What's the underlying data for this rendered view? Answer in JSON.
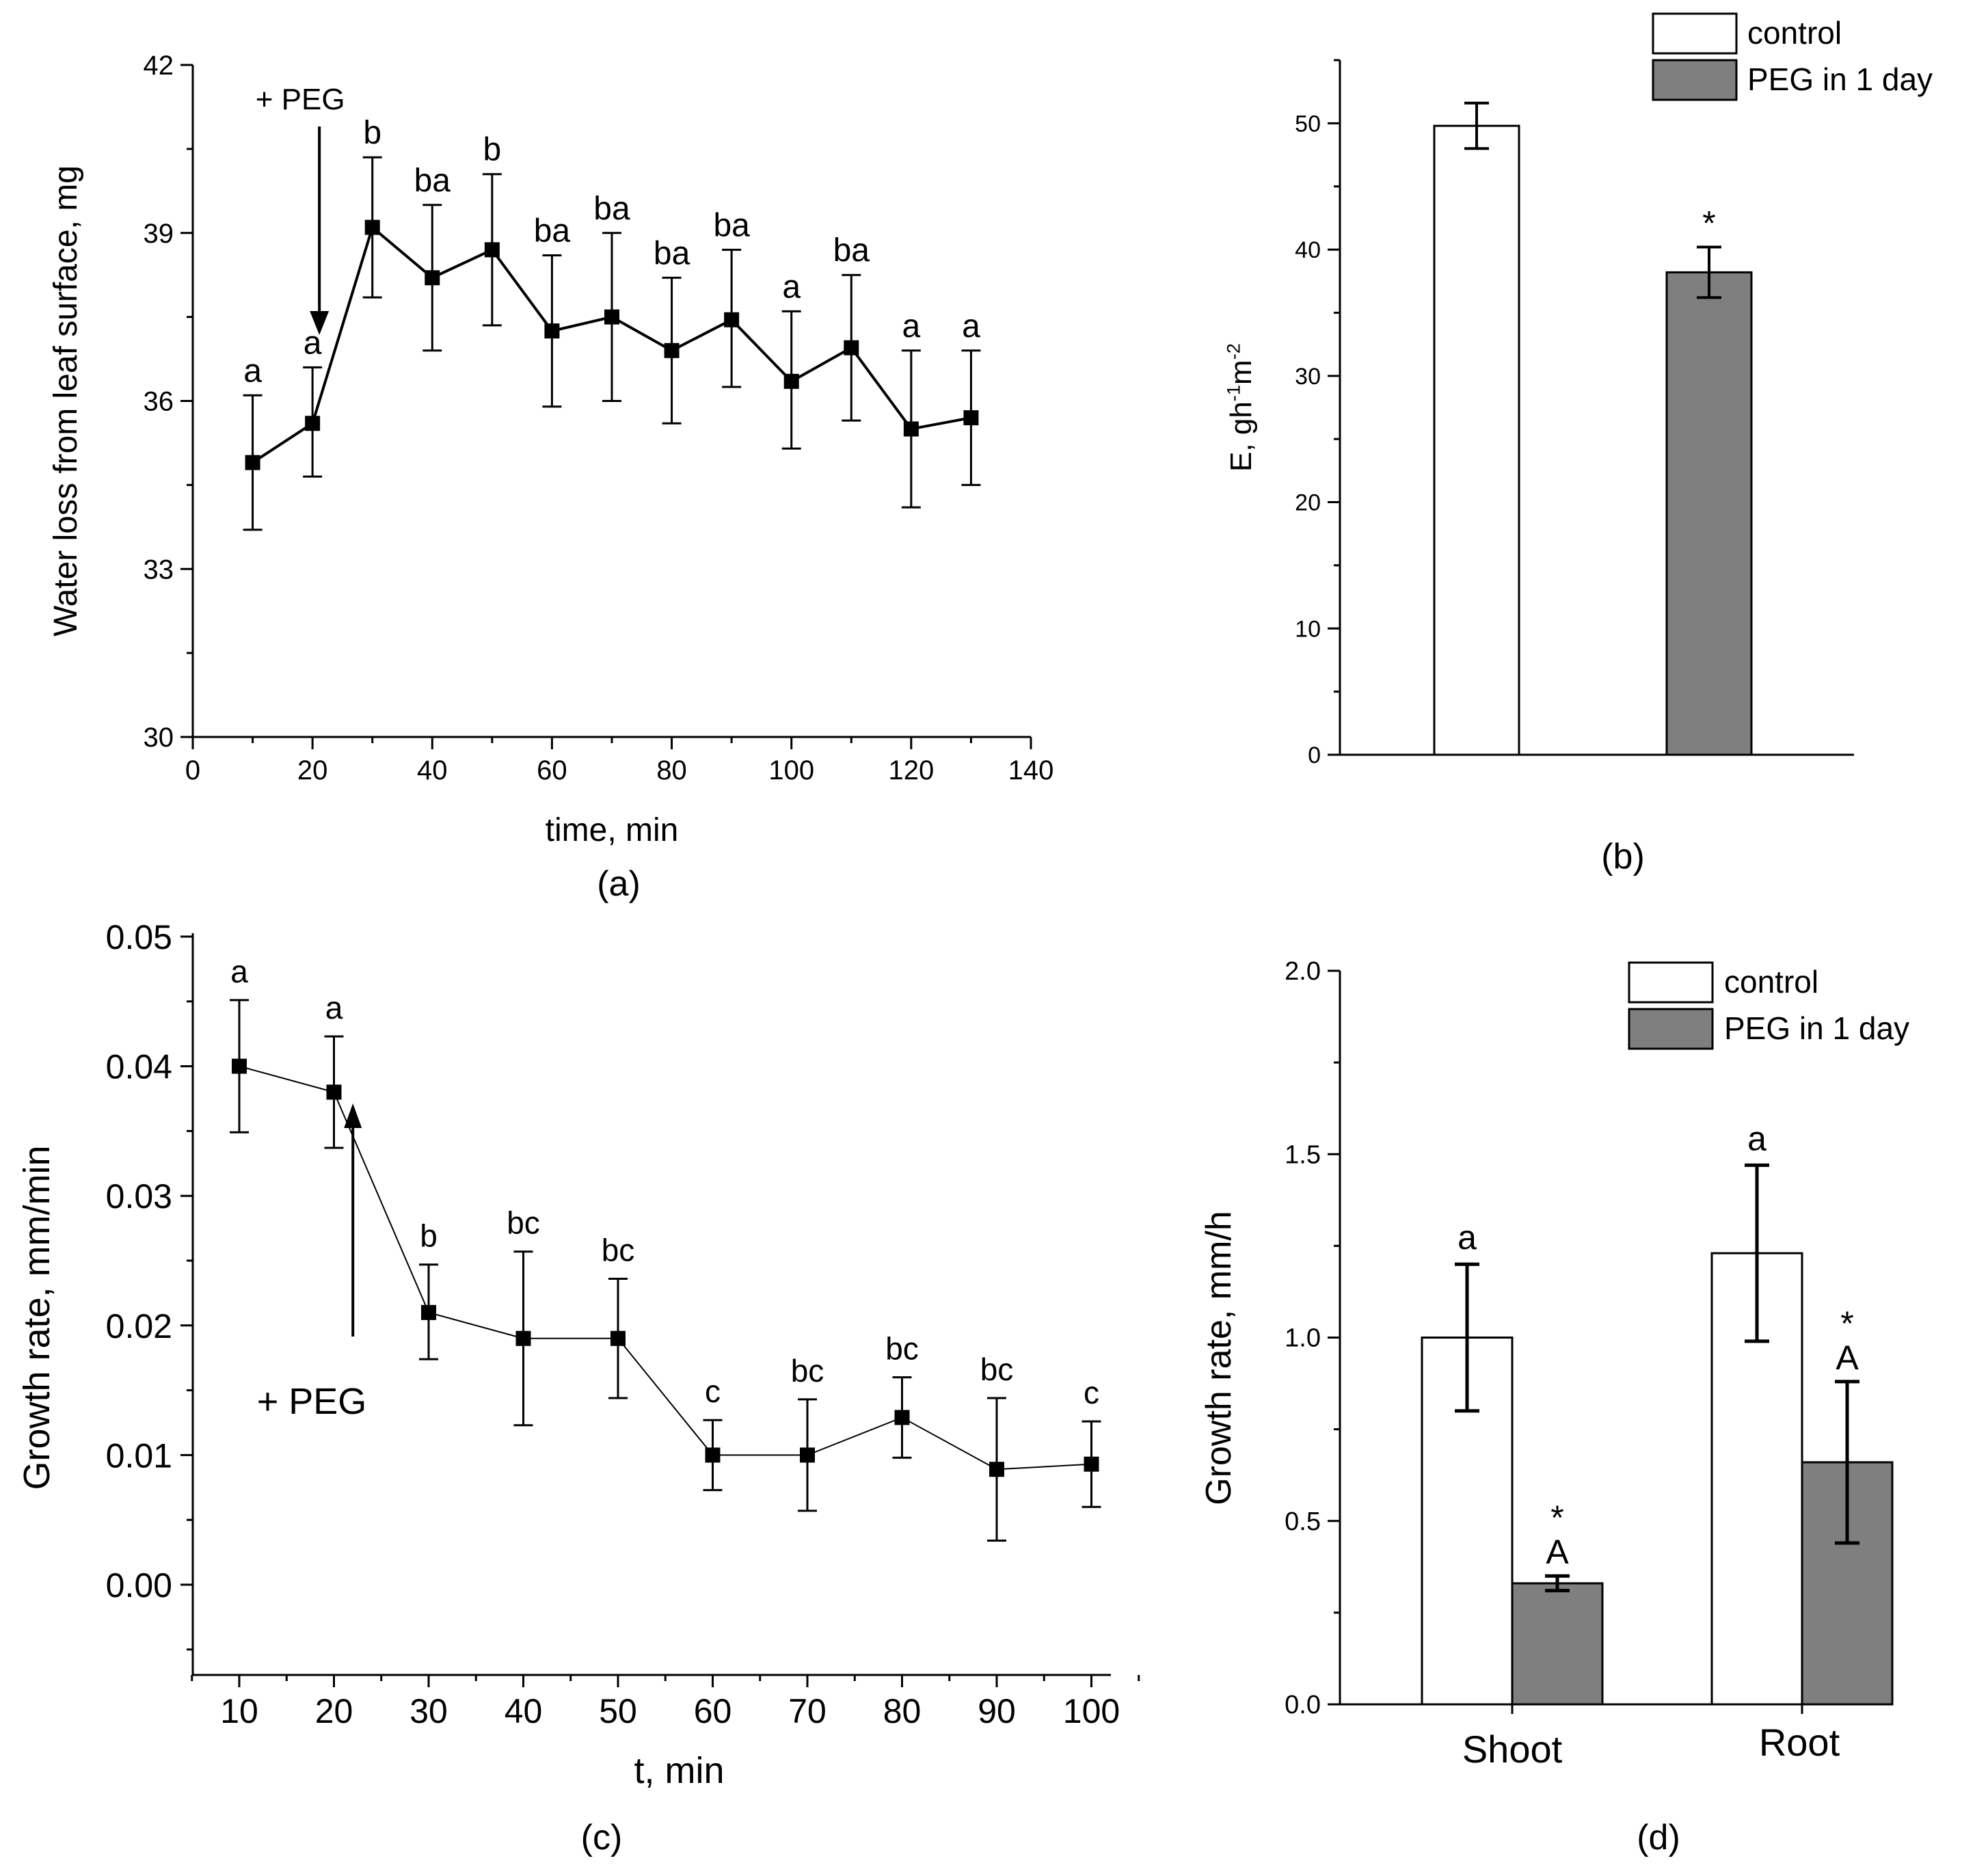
{
  "chart_data": [
    {
      "panel": "(a)",
      "type": "line",
      "xlabel": "time, min",
      "ylabel": "Water loss from leaf surface, mg",
      "xlim": [
        0,
        140
      ],
      "ylim": [
        30,
        42
      ],
      "xticks": [
        0,
        20,
        40,
        60,
        80,
        100,
        120,
        140
      ],
      "yticks": [
        30,
        33,
        36,
        39,
        42
      ],
      "x": [
        10,
        20,
        30,
        40,
        50,
        60,
        70,
        80,
        90,
        100,
        110,
        120,
        130
      ],
      "values": [
        34.9,
        35.6,
        39.1,
        38.2,
        38.7,
        37.25,
        37.5,
        36.9,
        37.45,
        36.35,
        36.95,
        35.5,
        35.7
      ],
      "err_upper": [
        36.1,
        36.6,
        40.35,
        39.5,
        40.05,
        38.6,
        39.0,
        38.2,
        38.7,
        37.6,
        38.25,
        36.9,
        36.9
      ],
      "err_lower": [
        33.7,
        34.65,
        37.85,
        36.9,
        37.35,
        35.9,
        36.0,
        35.6,
        36.25,
        35.15,
        35.65,
        34.1,
        34.5
      ],
      "letters": [
        "a",
        "a",
        "b",
        "ba",
        "b",
        "ba",
        "ba",
        "ba",
        "ba",
        "a",
        "ba",
        "a",
        "a"
      ],
      "annotation": {
        "text": "+ PEG",
        "arrow": "down",
        "at_x": 20
      },
      "grid": false
    },
    {
      "panel": "(b)",
      "type": "bar",
      "xlabel": "",
      "ylabel": "E, gh<sup>-1</sup>m<sup>-2</sup>",
      "ylim": [
        0,
        55
      ],
      "yticks": [
        0,
        10,
        20,
        30,
        40,
        50
      ],
      "series": [
        {
          "name": "control",
          "color": "#ffffff",
          "values": [
            49.8
          ],
          "err_upper": [
            51.6
          ],
          "err_lower": [
            48.0
          ],
          "marks": [
            ""
          ]
        },
        {
          "name": "PEG in 1 day",
          "color": "#7f7f7f",
          "values": [
            38.2
          ],
          "err_upper": [
            40.2
          ],
          "err_lower": [
            36.2
          ],
          "marks": [
            "*"
          ]
        }
      ],
      "legend": "top-right",
      "grid": false
    },
    {
      "panel": "(c)",
      "type": "line",
      "xlabel": "t, min",
      "ylabel": "Growth rate, mm/min",
      "xlim": [
        5,
        102.5
      ],
      "ylim": [
        -0.007,
        0.05
      ],
      "xticks": [
        10,
        20,
        30,
        40,
        50,
        60,
        70,
        80,
        90,
        100
      ],
      "ytick_labels": [
        "0.00",
        "0.01",
        "0.02",
        "0.03",
        "0.04",
        "0.05"
      ],
      "yticks": [
        0,
        0.01,
        0.02,
        0.03,
        0.04,
        0.05
      ],
      "x": [
        10,
        20,
        30,
        40,
        50,
        60,
        70,
        80,
        90,
        100
      ],
      "values": [
        0.04,
        0.038,
        0.021,
        0.019,
        0.019,
        0.01,
        0.01,
        0.0129,
        0.0089,
        0.0093
      ],
      "err_upper": [
        0.0451,
        0.0423,
        0.0247,
        0.0257,
        0.0236,
        0.0127,
        0.0143,
        0.016,
        0.0144,
        0.0126
      ],
      "err_lower": [
        0.0349,
        0.0337,
        0.0174,
        0.0123,
        0.0144,
        0.0073,
        0.0057,
        0.0098,
        0.0034,
        0.006
      ],
      "letters": [
        "a",
        "a",
        "b",
        "bc",
        "bc",
        "c",
        "bc",
        "bc",
        "bc",
        "c"
      ],
      "annotation": {
        "text": "+ PEG",
        "arrow": "up",
        "at_x": 22
      },
      "grid": false
    },
    {
      "panel": "(d)",
      "type": "bar",
      "xlabel": "",
      "ylabel": "Growth rate, mm/h",
      "categories": [
        "Shoot",
        "Root"
      ],
      "ylim": [
        0,
        2.0
      ],
      "yticks": [
        0,
        0.5,
        1.0,
        1.5,
        2.0
      ],
      "ytick_labels": [
        "0.0",
        "0.5",
        "1.0",
        "1.5",
        "2.0"
      ],
      "series": [
        {
          "name": "control",
          "color": "#ffffff",
          "values": [
            1.0,
            1.23
          ],
          "err_upper": [
            1.2,
            1.47
          ],
          "err_lower": [
            0.8,
            0.99
          ],
          "marks": [
            "a",
            "a"
          ]
        },
        {
          "name": "PEG in 1 day",
          "color": "#7f7f7f",
          "values": [
            0.33,
            0.66
          ],
          "err_upper": [
            0.35,
            0.88
          ],
          "err_lower": [
            0.31,
            0.44
          ],
          "marks": [
            "*\nA",
            "*\nA"
          ]
        }
      ],
      "legend": "top-right",
      "grid": false
    }
  ]
}
